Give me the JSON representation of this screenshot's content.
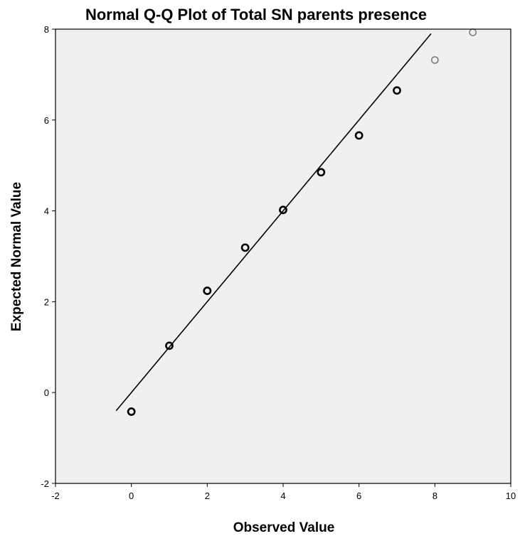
{
  "chart_data": {
    "type": "scatter",
    "title": "Normal Q-Q Plot of Total SN parents presence",
    "xlabel": "Observed Value",
    "ylabel": "Expected Normal Value",
    "xlim": [
      -2,
      10
    ],
    "ylim": [
      -2,
      8
    ],
    "xticks": [
      -2,
      0,
      2,
      4,
      6,
      8,
      10
    ],
    "yticks": [
      -2,
      0,
      2,
      4,
      6,
      8
    ],
    "grid": false,
    "points": [
      {
        "x": 0,
        "y": -0.42,
        "style": "bold"
      },
      {
        "x": 1,
        "y": 1.03,
        "style": "bold"
      },
      {
        "x": 2,
        "y": 2.24,
        "style": "bold"
      },
      {
        "x": 3,
        "y": 3.19,
        "style": "bold"
      },
      {
        "x": 4,
        "y": 4.02,
        "style": "bold"
      },
      {
        "x": 5,
        "y": 4.85,
        "style": "bold"
      },
      {
        "x": 6,
        "y": 5.66,
        "style": "bold"
      },
      {
        "x": 7,
        "y": 6.65,
        "style": "bold"
      },
      {
        "x": 8,
        "y": 7.32,
        "style": "light"
      },
      {
        "x": 9,
        "y": 7.93,
        "style": "light"
      }
    ],
    "reference_line": {
      "x": [
        -0.4,
        7.9
      ],
      "y": [
        -0.4,
        7.9
      ]
    },
    "colors": {
      "plot_background": "#f0f0f0",
      "frame": "#000000",
      "marker_bold": "#000000",
      "marker_light": "#777777",
      "line": "#000000"
    }
  }
}
